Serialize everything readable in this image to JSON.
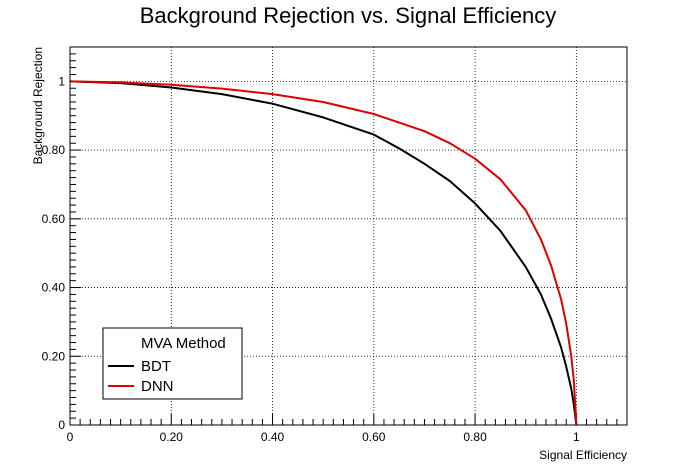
{
  "chart_data": {
    "type": "line",
    "title": "Background Rejection vs. Signal Efficiency",
    "xlabel": "Signal Efficiency",
    "ylabel": "Background Rejection",
    "xlim": [
      0,
      1.1
    ],
    "ylim": [
      0,
      1.1
    ],
    "grid": true,
    "legend": {
      "title": "MVA Method",
      "placement": "bottom-left"
    },
    "x_ticks": [
      "0",
      "0.20",
      "0.40",
      "0.60",
      "0.80",
      "1"
    ],
    "y_ticks": [
      "0",
      "0.20",
      "0.40",
      "0.60",
      "0.80",
      "1"
    ],
    "series": [
      {
        "name": "BDT",
        "color": "#000000",
        "x": [
          0,
          0.1,
          0.2,
          0.3,
          0.4,
          0.5,
          0.6,
          0.65,
          0.7,
          0.75,
          0.8,
          0.85,
          0.9,
          0.93,
          0.95,
          0.97,
          0.98,
          0.99,
          0.995,
          1.0
        ],
        "y": [
          1.0,
          0.995,
          0.982,
          0.963,
          0.935,
          0.895,
          0.845,
          0.805,
          0.76,
          0.71,
          0.645,
          0.565,
          0.46,
          0.38,
          0.31,
          0.225,
          0.17,
          0.105,
          0.06,
          0.0
        ]
      },
      {
        "name": "DNN",
        "color": "#dd0000",
        "x": [
          0,
          0.1,
          0.2,
          0.3,
          0.4,
          0.5,
          0.6,
          0.7,
          0.75,
          0.8,
          0.85,
          0.9,
          0.93,
          0.95,
          0.97,
          0.98,
          0.99,
          0.995,
          1.0
        ],
        "y": [
          1.0,
          0.997,
          0.99,
          0.979,
          0.963,
          0.94,
          0.905,
          0.855,
          0.82,
          0.775,
          0.715,
          0.625,
          0.54,
          0.465,
          0.365,
          0.295,
          0.2,
          0.13,
          0.0
        ]
      }
    ]
  }
}
